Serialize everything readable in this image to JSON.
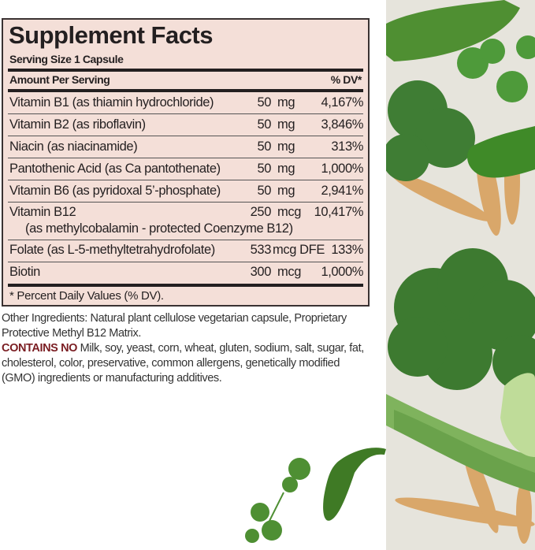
{
  "label": {
    "title": "Supplement Facts",
    "serving_size": "Serving Size 1 Capsule",
    "header_left": "Amount Per Serving",
    "header_right": "% DV*",
    "rows": [
      {
        "name": "Vitamin B1 (as thiamin hydrochloride)",
        "amount": "50",
        "unit": "mg",
        "dv": "4,167%"
      },
      {
        "name": "Vitamin B2 (as riboflavin)",
        "amount": "50",
        "unit": "mg",
        "dv": "3,846%"
      },
      {
        "name": "Niacin (as niacinamide)",
        "amount": "50",
        "unit": "mg",
        "dv": "313%"
      },
      {
        "name": "Pantothenic Acid (as Ca pantothenate)",
        "amount": "50",
        "unit": "mg",
        "dv": "1,000%"
      },
      {
        "name": "Vitamin B6 (as pyridoxal 5’-phosphate)",
        "amount": "50",
        "unit": "mg",
        "dv": "2,941%"
      },
      {
        "name": "Vitamin B12",
        "sub": "(as methylcobalamin - protected Coenzyme B12)",
        "amount": "250",
        "unit": "mcg",
        "dv": "10,417%"
      },
      {
        "name": "Folate (as L-5-methyltetrahydrofolate)",
        "amount": "533",
        "unit": "mcg DFE",
        "dv": "133%"
      },
      {
        "name": "Biotin",
        "amount": "300",
        "unit": "mcg",
        "dv": "1,000%"
      }
    ],
    "footnote": "* Percent Daily Values (% DV)."
  },
  "other_ingredients": "Other Ingredients: Natural plant cellulose vegetarian capsule, Proprietary Protective Methyl B12 Matrix.",
  "contains_no": {
    "label": "CONTAINS NO",
    "text": "Milk, soy, yeast, corn, wheat, gluten, sodium, salt, sugar, fat, cholesterol, color, preservative, common allergens, genetically modified (GMO) ingredients or manufacturing additives."
  },
  "colors": {
    "label_bg": "#f4dfd8",
    "contains_no": "#7a1d22",
    "veg_bg": "#e6e4dc"
  }
}
